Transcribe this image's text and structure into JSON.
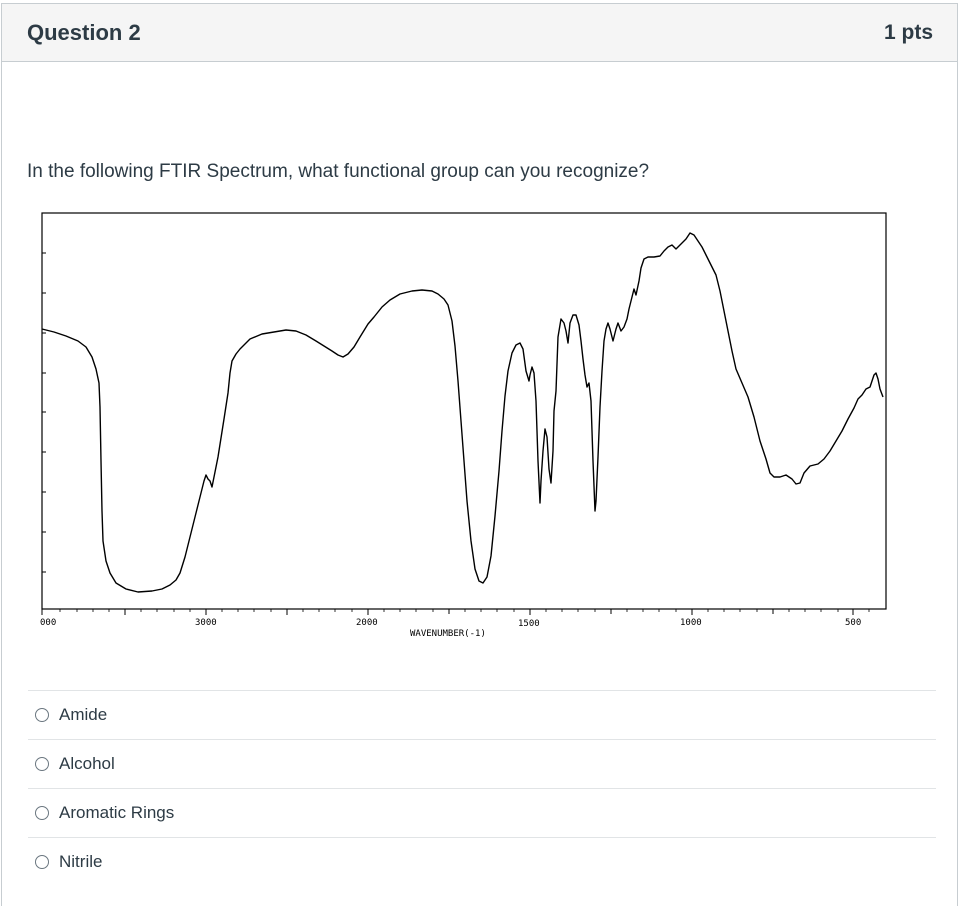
{
  "question": {
    "title": "Question 2",
    "points": "1 pts",
    "text": "In the following FTIR Spectrum, what functional group can you recognize?"
  },
  "spectrum": {
    "xlabel": "WAVENUMBER(-1)",
    "tick_labels": [
      "000",
      "3000",
      "2000",
      "1500",
      "1000",
      "500"
    ],
    "line_color": "#000000"
  },
  "answers": [
    {
      "label": "Amide"
    },
    {
      "label": "Alcohol"
    },
    {
      "label": "Aromatic Rings"
    },
    {
      "label": "Nitrile"
    }
  ]
}
